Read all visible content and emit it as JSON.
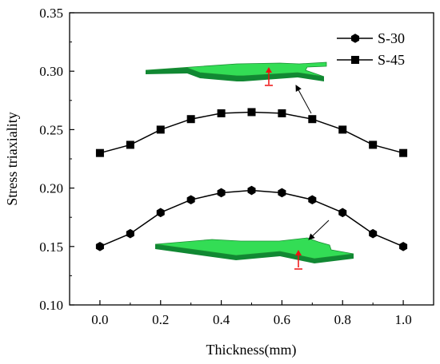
{
  "chart_data": {
    "type": "line",
    "title": "",
    "xlabel": "Thickness(mm)",
    "ylabel": "Stress triaxiality",
    "xlim": [
      -0.1,
      1.1
    ],
    "ylim": [
      0.1,
      0.35
    ],
    "xticks": [
      "0.0",
      "0.2",
      "0.4",
      "0.6",
      "0.8",
      "1.0"
    ],
    "yticks": [
      "0.10",
      "0.15",
      "0.20",
      "0.25",
      "0.30",
      "0.35"
    ],
    "x": [
      0.0,
      0.1,
      0.2,
      0.3,
      0.4,
      0.5,
      0.6,
      0.7,
      0.8,
      0.9,
      1.0
    ],
    "grid": false,
    "legend_position": "top-right",
    "series": [
      {
        "name": "S-30",
        "marker": "hexagon",
        "color": "#000000",
        "values": [
          0.15,
          0.161,
          0.179,
          0.19,
          0.196,
          0.198,
          0.196,
          0.19,
          0.179,
          0.161,
          0.15
        ]
      },
      {
        "name": "S-45",
        "marker": "square",
        "color": "#000000",
        "values": [
          0.23,
          0.237,
          0.25,
          0.259,
          0.264,
          0.265,
          0.264,
          0.259,
          0.25,
          0.237,
          0.23
        ]
      }
    ],
    "insets": [
      {
        "label": "specimen-3d-inset",
        "points_to_series": "S-45",
        "fill": "#22cc44",
        "arrow_color": "#ee1111"
      },
      {
        "label": "specimen-3d-inset",
        "points_to_series": "S-30",
        "fill": "#22cc44",
        "arrow_color": "#ee1111"
      }
    ]
  }
}
